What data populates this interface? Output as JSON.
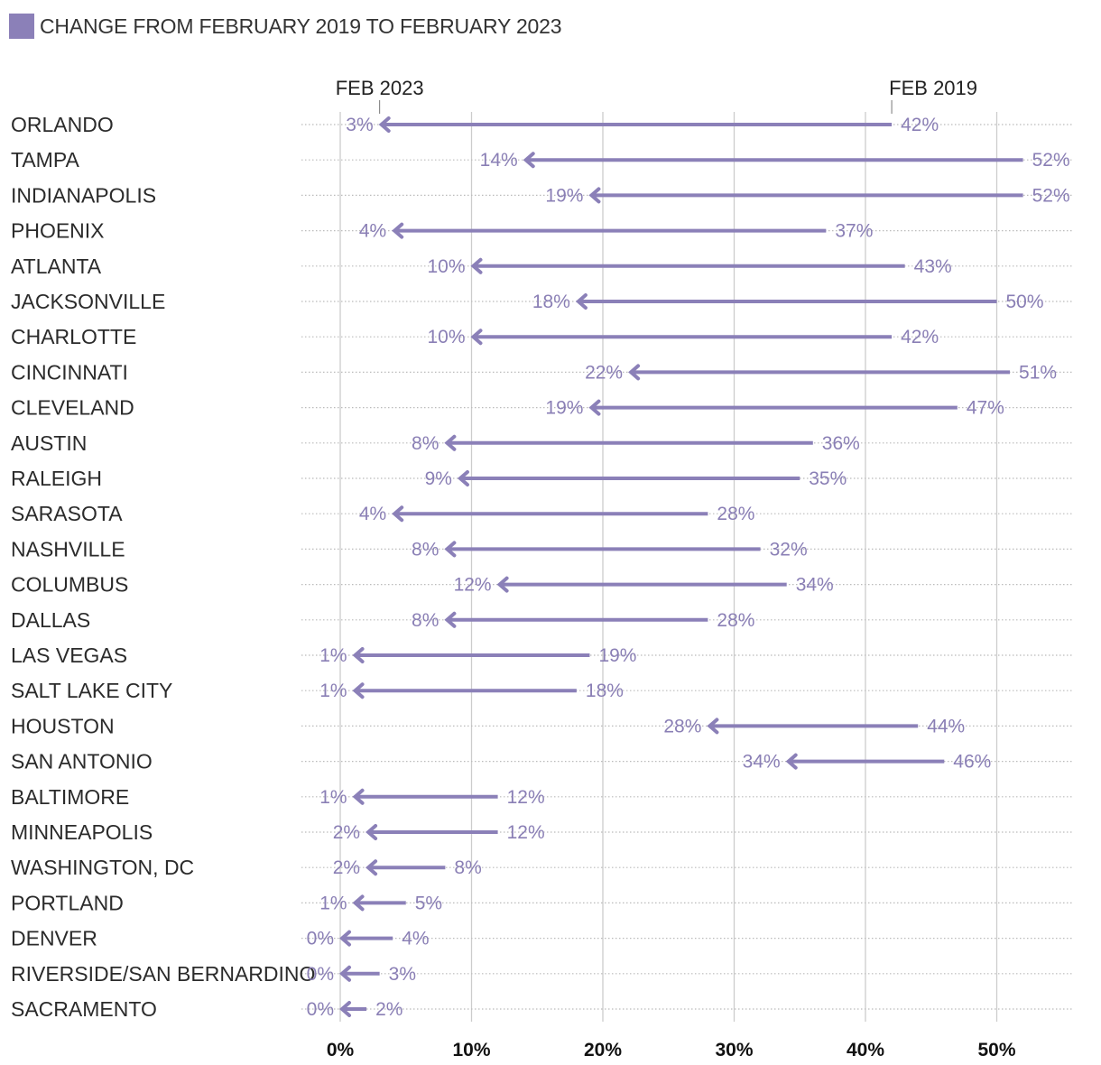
{
  "legend": {
    "label": "CHANGE FROM FEBRUARY 2019 TO FEBRUARY 2023",
    "color": "#8b80b8"
  },
  "colors": {
    "series": "#8b80b8",
    "value_label": "#8a7fb5",
    "grid": "#cccccc",
    "dots": "#bbbbbb"
  },
  "chart_data": {
    "type": "dumbbell-arrow",
    "xlim": [
      0,
      50
    ],
    "xticks": [
      "0%",
      "10%",
      "20%",
      "30%",
      "40%",
      "50%"
    ],
    "marker_labels": {
      "end": "FEB 2023",
      "start": "FEB 2019"
    },
    "grid": true,
    "rows": [
      {
        "city": "ORLANDO",
        "feb2019": 42,
        "feb2023": 3
      },
      {
        "city": "TAMPA",
        "feb2019": 52,
        "feb2023": 14
      },
      {
        "city": "INDIANAPOLIS",
        "feb2019": 52,
        "feb2023": 19
      },
      {
        "city": "PHOENIX",
        "feb2019": 37,
        "feb2023": 4
      },
      {
        "city": "ATLANTA",
        "feb2019": 43,
        "feb2023": 10
      },
      {
        "city": "JACKSONVILLE",
        "feb2019": 50,
        "feb2023": 18
      },
      {
        "city": "CHARLOTTE",
        "feb2019": 42,
        "feb2023": 10
      },
      {
        "city": "CINCINNATI",
        "feb2019": 51,
        "feb2023": 22
      },
      {
        "city": "CLEVELAND",
        "feb2019": 47,
        "feb2023": 19
      },
      {
        "city": "AUSTIN",
        "feb2019": 36,
        "feb2023": 8
      },
      {
        "city": "RALEIGH",
        "feb2019": 35,
        "feb2023": 9
      },
      {
        "city": "SARASOTA",
        "feb2019": 28,
        "feb2023": 4
      },
      {
        "city": "NASHVILLE",
        "feb2019": 32,
        "feb2023": 8
      },
      {
        "city": "COLUMBUS",
        "feb2019": 34,
        "feb2023": 12
      },
      {
        "city": "DALLAS",
        "feb2019": 28,
        "feb2023": 8
      },
      {
        "city": "LAS VEGAS",
        "feb2019": 19,
        "feb2023": 1
      },
      {
        "city": "SALT LAKE CITY",
        "feb2019": 18,
        "feb2023": 1
      },
      {
        "city": "HOUSTON",
        "feb2019": 44,
        "feb2023": 28
      },
      {
        "city": "SAN ANTONIO",
        "feb2019": 46,
        "feb2023": 34
      },
      {
        "city": "BALTIMORE",
        "feb2019": 12,
        "feb2023": 1
      },
      {
        "city": "MINNEAPOLIS",
        "feb2019": 12,
        "feb2023": 2
      },
      {
        "city": "WASHINGTON, DC",
        "feb2019": 8,
        "feb2023": 2
      },
      {
        "city": "PORTLAND",
        "feb2019": 5,
        "feb2023": 1
      },
      {
        "city": "DENVER",
        "feb2019": 4,
        "feb2023": 0
      },
      {
        "city": "RIVERSIDE/SAN BERNARDINO",
        "feb2019": 3,
        "feb2023": 0
      },
      {
        "city": "SACRAMENTO",
        "feb2019": 2,
        "feb2023": 0
      }
    ]
  }
}
